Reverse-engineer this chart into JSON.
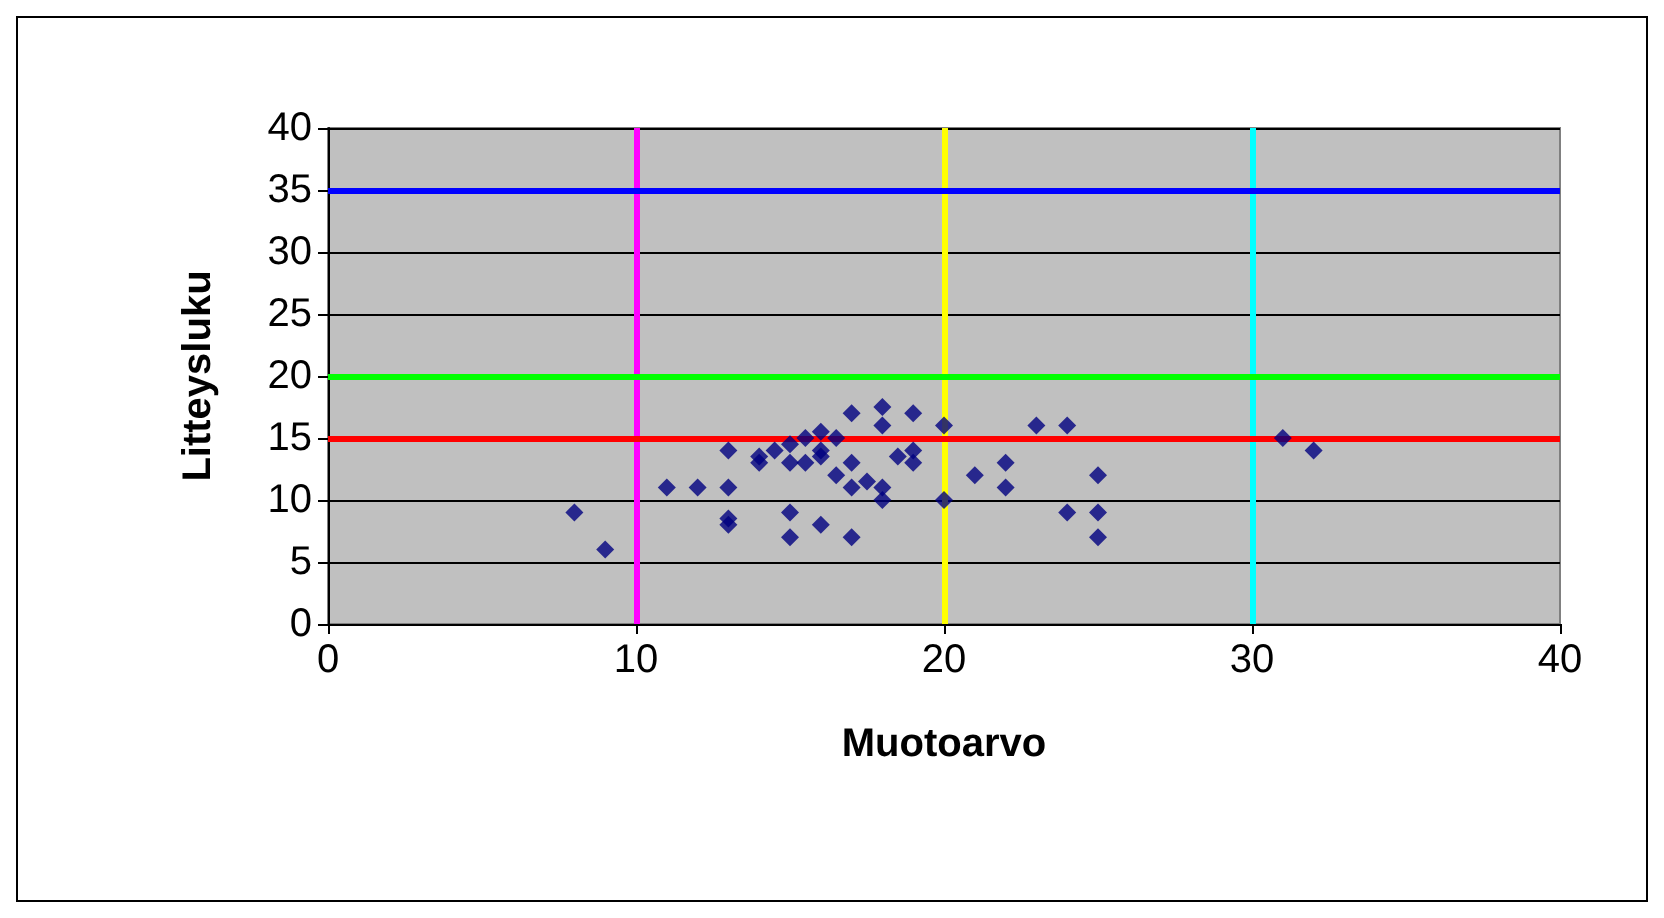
{
  "chart_data": {
    "type": "scatter",
    "xlabel": "Muotoarvo",
    "ylabel": "Litteysluku",
    "xlim": [
      0,
      40
    ],
    "xticks": [
      0,
      10,
      20,
      30,
      40
    ],
    "ylim": [
      0,
      40
    ],
    "yticks": [
      0,
      5,
      10,
      15,
      20,
      25,
      30,
      35,
      40
    ],
    "grid": "y",
    "marker": "diamond",
    "x": [
      8,
      9,
      11,
      12,
      13,
      13,
      13,
      13,
      14,
      14,
      14.5,
      15,
      15,
      15,
      15,
      15.5,
      15.5,
      16,
      16,
      16,
      16,
      16.5,
      16.5,
      17,
      17,
      17,
      17,
      17.5,
      18,
      18,
      18,
      18,
      18.5,
      19,
      19,
      19,
      20,
      20,
      21,
      22,
      22,
      23,
      24,
      24,
      25,
      25,
      25,
      31,
      32
    ],
    "series": [
      {
        "color": "#000080",
        "values": [
          9,
          6,
          11,
          11,
          14,
          11,
          8.5,
          8,
          13.5,
          13,
          14,
          14.5,
          13,
          9,
          7,
          13,
          15,
          15.5,
          14,
          13.5,
          8,
          15,
          12,
          11,
          13,
          17,
          7,
          11.5,
          17.5,
          16,
          11,
          10,
          13.5,
          17,
          14,
          13,
          16,
          10,
          12,
          13,
          11,
          16,
          16,
          9,
          12,
          9,
          7,
          15,
          14
        ]
      }
    ],
    "ref_lines": [
      {
        "axis": "x",
        "value": 10,
        "color": "#ff00ff"
      },
      {
        "axis": "x",
        "value": 20,
        "color": "#ffff00"
      },
      {
        "axis": "x",
        "value": 30,
        "color": "#00ffff"
      },
      {
        "axis": "y",
        "value": 15,
        "color": "#ff0000"
      },
      {
        "axis": "y",
        "value": 20,
        "color": "#00ff00"
      },
      {
        "axis": "y",
        "value": 35,
        "color": "#0000ff"
      }
    ]
  }
}
